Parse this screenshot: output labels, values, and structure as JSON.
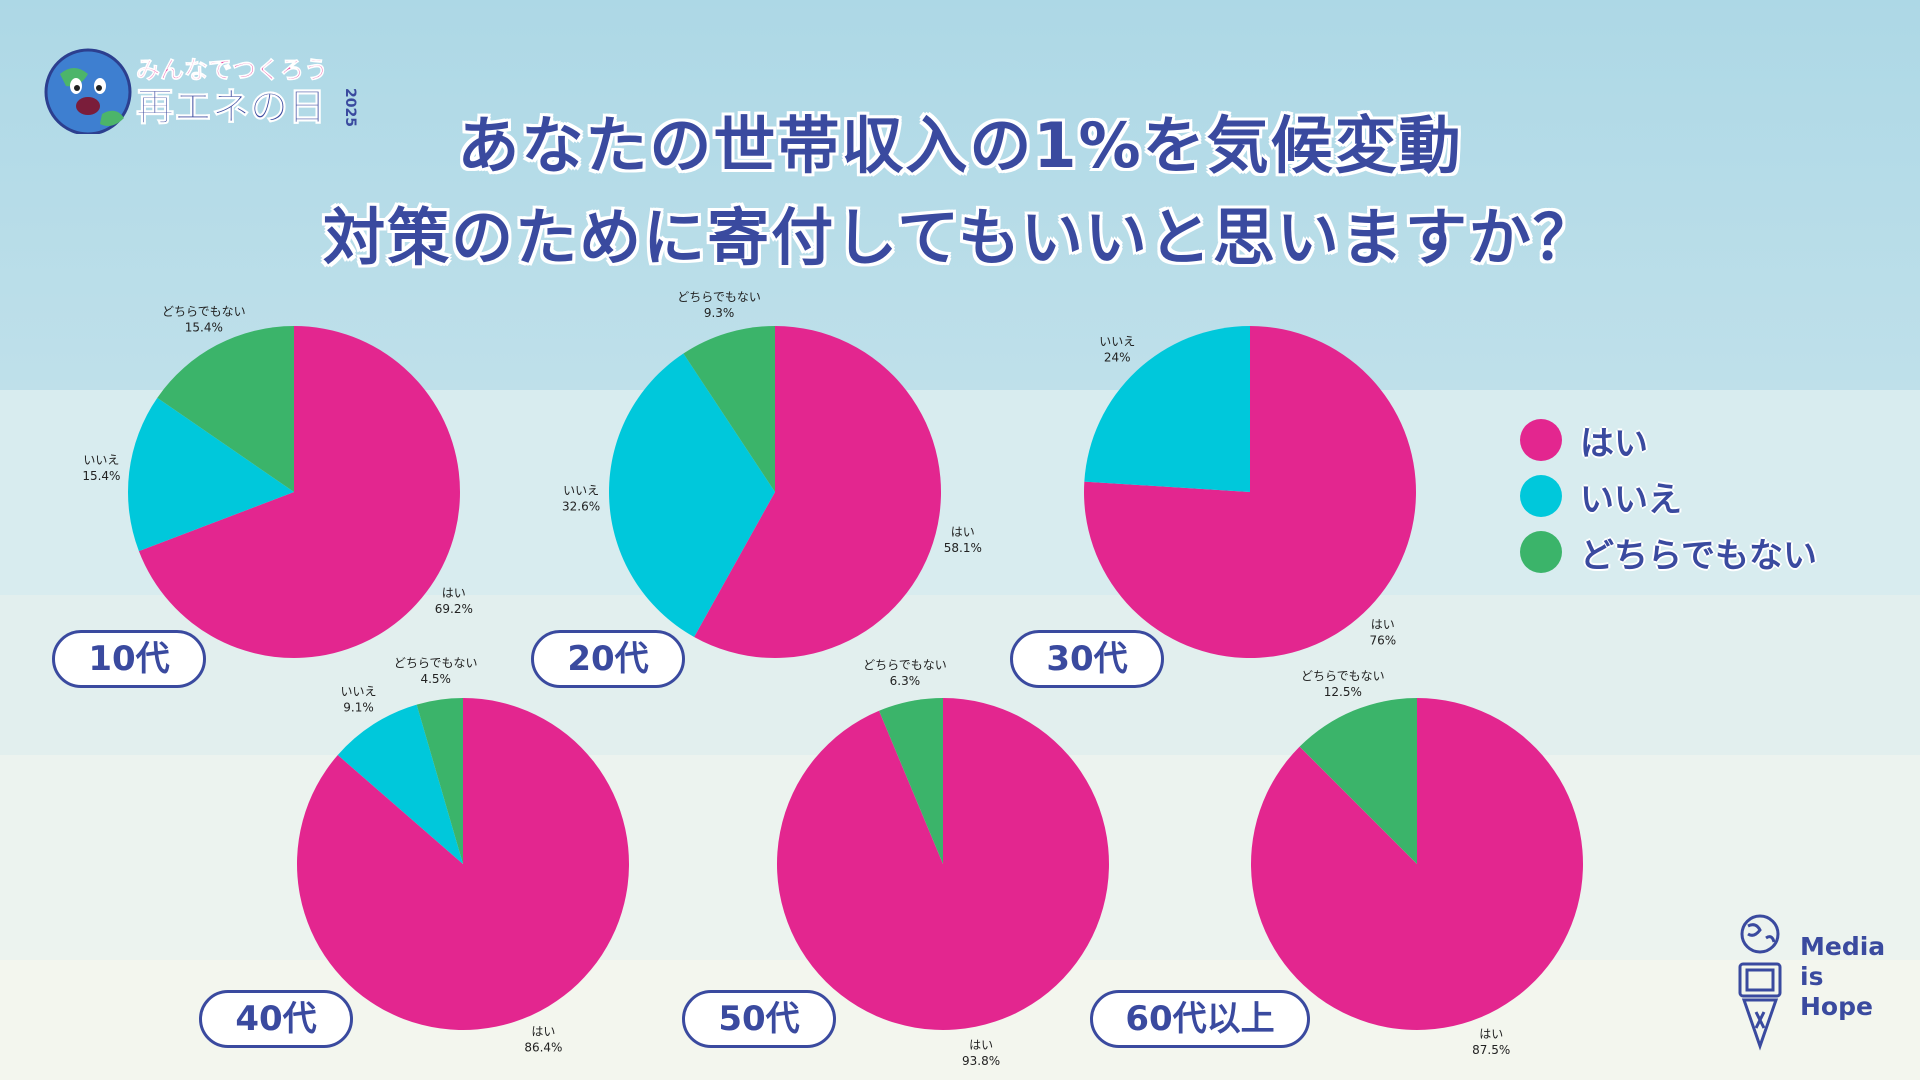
{
  "title": {
    "line1": "あなたの世帯収入の1%を気候変動",
    "line2": "対策のために寄付してもいいと思いますか？"
  },
  "logo": {
    "text_line1": "みんなでつくろう",
    "text_line2": "再エネの日",
    "year": "2025"
  },
  "legend": [
    {
      "label": "はい",
      "color": "#e3268f"
    },
    {
      "label": "いいえ",
      "color": "#00c8db"
    },
    {
      "label": "どちらでもない",
      "color": "#3bb46a"
    }
  ],
  "brand": {
    "line1": "Media",
    "line2": "is",
    "line3": "Hope"
  },
  "chart_data": [
    {
      "type": "pie",
      "title": "10代",
      "slices": [
        {
          "label": "はい",
          "value": 69.2,
          "text": "69.2%"
        },
        {
          "label": "いいえ",
          "value": 15.4,
          "text": "15.4%"
        },
        {
          "label": "どちらでもない",
          "value": 15.4,
          "text": "15.4%"
        }
      ]
    },
    {
      "type": "pie",
      "title": "20代",
      "slices": [
        {
          "label": "はい",
          "value": 58.1,
          "text": "58.1%"
        },
        {
          "label": "いいえ",
          "value": 32.6,
          "text": "32.6%"
        },
        {
          "label": "どちらでもない",
          "value": 9.3,
          "text": "9.3%"
        }
      ]
    },
    {
      "type": "pie",
      "title": "30代",
      "slices": [
        {
          "label": "はい",
          "value": 76,
          "text": "76%"
        },
        {
          "label": "いいえ",
          "value": 24,
          "text": "24%"
        }
      ]
    },
    {
      "type": "pie",
      "title": "40代",
      "slices": [
        {
          "label": "はい",
          "value": 86.4,
          "text": "86.4%"
        },
        {
          "label": "いいえ",
          "value": 9.1,
          "text": "9.1%"
        },
        {
          "label": "どちらでもない",
          "value": 4.5,
          "text": "4.5%"
        }
      ]
    },
    {
      "type": "pie",
      "title": "50代",
      "slices": [
        {
          "label": "はい",
          "value": 93.8,
          "text": "93.8%"
        },
        {
          "label": "どちらでもない",
          "value": 6.3,
          "text": "6.3%"
        }
      ]
    },
    {
      "type": "pie",
      "title": "60代以上",
      "slices": [
        {
          "label": "はい",
          "value": 87.5,
          "text": "87.5%"
        },
        {
          "label": "どちらでもない",
          "value": 12.5,
          "text": "12.5%"
        }
      ]
    }
  ]
}
